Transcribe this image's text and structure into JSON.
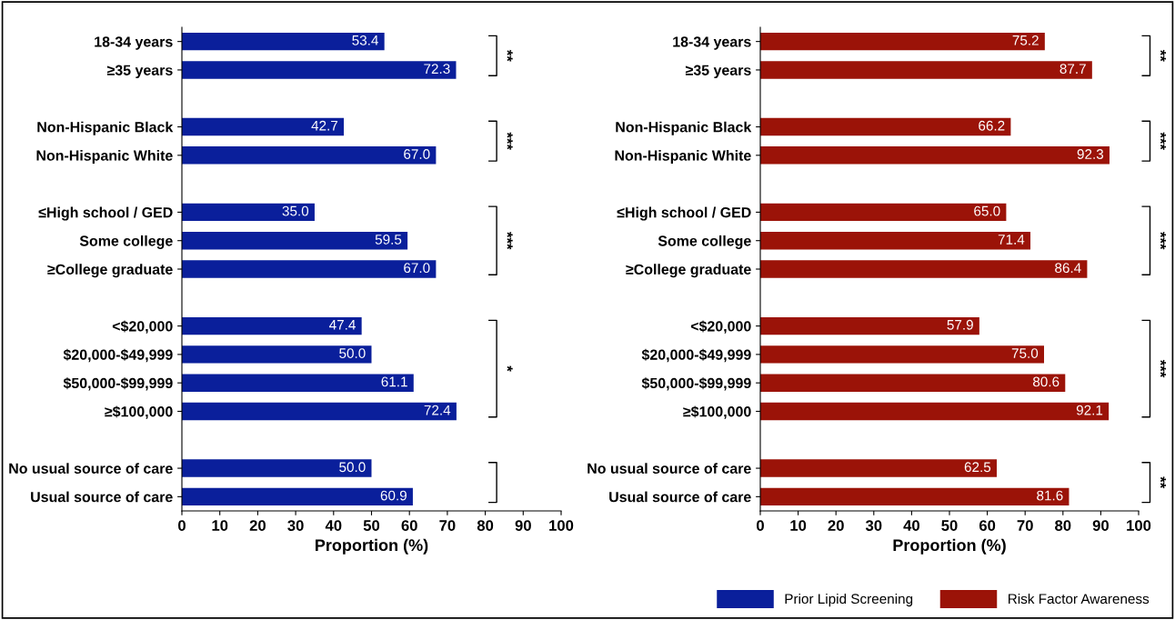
{
  "chart_data": [
    {
      "type": "bar",
      "orientation": "horizontal",
      "categories": [
        "18-34 years",
        "≥35 years",
        null,
        "Non-Hispanic Black",
        "Non-Hispanic White",
        null,
        "≤High school / GED",
        "Some college",
        "≥College graduate",
        null,
        "<$20,000",
        "$20,000-$49,999",
        "$50,000-$99,999",
        "≥$100,000",
        null,
        "No usual source of care",
        "Usual source of care"
      ],
      "series": [
        {
          "name": "Prior Lipid Screening",
          "color": "#0a1f9b",
          "values": [
            53.4,
            72.3,
            null,
            42.7,
            67,
            null,
            35,
            59.5,
            67,
            null,
            47.4,
            50,
            61.1,
            72.4,
            null,
            50,
            60.9
          ],
          "value_labels": [
            "53.4",
            "72.3",
            null,
            "42.7",
            "67.0",
            null,
            "35.0",
            "59.5",
            "67.0",
            null,
            "47.4",
            "50.0",
            "61.1",
            "72.4",
            null,
            "50.0",
            "60.9"
          ]
        }
      ],
      "xlim": [
        0,
        100
      ],
      "xticks": [
        0,
        10,
        20,
        30,
        40,
        50,
        60,
        70,
        80,
        90,
        100
      ],
      "xlabel": "Proportion (%)",
      "legend": "bottom right",
      "grid": false,
      "annotations": [
        "**",
        "***",
        "***",
        "*"
      ]
    },
    {
      "type": "bar",
      "orientation": "horizontal",
      "categories": [
        "18-34 years",
        "≥35 years",
        null,
        "Non-Hispanic Black",
        "Non-Hispanic White",
        null,
        "≤High school / GED",
        "Some college",
        "≥College graduate",
        null,
        "<$20,000",
        "$20,000-$49,999",
        "$50,000-$99,999",
        "≥$100,000",
        null,
        "No usual source of care",
        "Usual source of care"
      ],
      "series": [
        {
          "name": "Risk Factor Awareness",
          "color": "#9b1308",
          "values": [
            75.2,
            87.7,
            null,
            66.2,
            92.3,
            null,
            65,
            71.4,
            86.4,
            null,
            57.9,
            75,
            80.6,
            92.1,
            null,
            62.5,
            81.6
          ],
          "value_labels": [
            "75.2",
            "87.7",
            null,
            "66.2",
            "92.3",
            null,
            "65.0",
            "71.4",
            "86.4",
            null,
            "57.9",
            "75.0",
            "80.6",
            "92.1",
            null,
            "62.5",
            "81.6"
          ]
        }
      ],
      "xlim": [
        0,
        100
      ],
      "xticks": [
        0,
        10,
        20,
        30,
        40,
        50,
        60,
        70,
        80,
        90,
        100
      ],
      "xlabel": "Proportion (%)",
      "legend": "bottom right",
      "grid": false,
      "annotations": [
        "**",
        "***",
        "***",
        "***",
        "**"
      ]
    }
  ]
}
